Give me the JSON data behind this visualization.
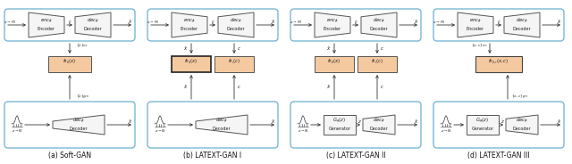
{
  "bg_color": "#ffffff",
  "panel_border_color": "#7ab8d4",
  "box_enc_dec_fill": "#f5f5f5",
  "box_dis_fill": "#f5c9a0",
  "box_gen_fill": "#f5f5f5",
  "arrow_color": "#333333",
  "panels": [
    {
      "label": "(a) Soft-GAN",
      "dis_count": 1,
      "dis_dark": false,
      "has_two_bot": false,
      "has_gen_bot": false
    },
    {
      "label": "(b) LATEXT-GAN I",
      "dis_count": 2,
      "dis_dark": true,
      "has_two_bot": false,
      "has_gen_bot": false
    },
    {
      "label": "(c) LATEXT-GAN II",
      "dis_count": 2,
      "dis_dark": false,
      "has_two_bot": true,
      "has_gen_bot": true
    },
    {
      "label": "(d) LATEXT-GAN III",
      "dis_count": 1,
      "dis_dark": false,
      "has_two_bot": true,
      "has_gen_bot": true,
      "dis_combined": true
    }
  ]
}
